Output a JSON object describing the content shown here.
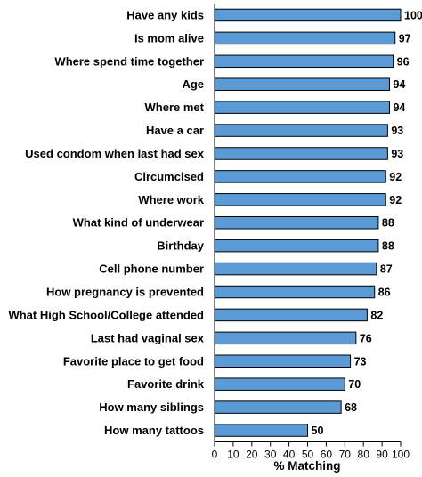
{
  "chart_data": {
    "type": "bar",
    "orientation": "horizontal",
    "categories": [
      "Have any kids",
      "Is mom alive",
      "Where spend time together",
      "Age",
      "Where met",
      "Have a car",
      "Used condom when last had sex",
      "Circumcised",
      "Where work",
      "What kind of underwear",
      "Birthday",
      "Cell phone number",
      "How pregnancy is prevented",
      "What High School/College attended",
      "Last had vaginal sex",
      "Favorite place to get food",
      "Favorite drink",
      "How many siblings",
      "How many tattoos"
    ],
    "values": [
      100,
      97,
      96,
      94,
      94,
      93,
      93,
      92,
      92,
      88,
      88,
      87,
      86,
      82,
      76,
      73,
      70,
      68,
      50
    ],
    "xlabel": "% Matching",
    "ylabel": "",
    "xlim": [
      0,
      100
    ],
    "xticks": [
      0,
      10,
      20,
      30,
      40,
      50,
      60,
      70,
      80,
      90,
      100
    ],
    "grid": false,
    "legend": "none",
    "bar_color": "#5b9bd5",
    "bar_edge_color": "#000000",
    "data_labels": true
  }
}
